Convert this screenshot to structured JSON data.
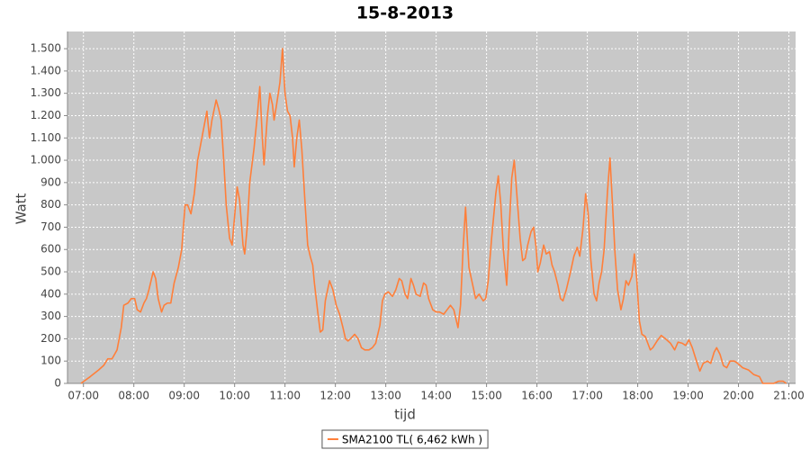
{
  "chart_data": {
    "type": "line",
    "title": "15-8-2013",
    "x_label": "tijd",
    "y_label": "Watt",
    "x": [
      "06:57",
      "07:08",
      "07:18",
      "07:24",
      "07:29",
      "07:34",
      "07:40",
      "07:45",
      "07:48",
      "07:53",
      "07:57",
      "08:01",
      "08:04",
      "08:08",
      "08:12",
      "08:15",
      "08:18",
      "08:23",
      "08:26",
      "08:29",
      "08:33",
      "08:36",
      "08:40",
      "08:44",
      "08:48",
      "08:53",
      "08:57",
      "09:01",
      "09:04",
      "09:08",
      "09:12",
      "09:16",
      "09:20",
      "09:25",
      "09:27",
      "09:30",
      "09:33",
      "09:38",
      "09:41",
      "09:44",
      "09:47",
      "09:50",
      "09:54",
      "09:57",
      "10:00",
      "10:03",
      "10:06",
      "10:10",
      "10:12",
      "10:15",
      "10:18",
      "10:23",
      "10:27",
      "10:30",
      "10:33",
      "10:35",
      "10:39",
      "10:42",
      "10:45",
      "10:47",
      "10:50",
      "10:54",
      "10:57",
      "11:00",
      "11:03",
      "11:06",
      "11:09",
      "11:11",
      "11:14",
      "11:17",
      "11:20",
      "11:24",
      "11:27",
      "11:30",
      "11:33",
      "11:35",
      "11:39",
      "11:42",
      "11:45",
      "11:48",
      "11:53",
      "11:57",
      "12:01",
      "12:05",
      "12:09",
      "12:12",
      "12:15",
      "12:18",
      "12:23",
      "12:27",
      "12:31",
      "12:35",
      "12:40",
      "12:44",
      "12:48",
      "12:53",
      "12:56",
      "12:59",
      "13:03",
      "13:08",
      "13:12",
      "13:16",
      "13:19",
      "13:23",
      "13:26",
      "13:30",
      "13:33",
      "13:36",
      "13:41",
      "13:45",
      "13:48",
      "13:51",
      "13:56",
      "14:00",
      "14:04",
      "14:09",
      "14:13",
      "14:17",
      "14:21",
      "14:26",
      "14:29",
      "14:32",
      "14:35",
      "14:39",
      "14:43",
      "14:47",
      "14:51",
      "14:56",
      "14:59",
      "15:02",
      "15:06",
      "15:11",
      "15:14",
      "15:17",
      "15:20",
      "15:24",
      "15:27",
      "15:30",
      "15:33",
      "15:36",
      "15:40",
      "15:43",
      "15:46",
      "15:49",
      "15:53",
      "15:56",
      "15:59",
      "16:01",
      "16:04",
      "16:08",
      "16:11",
      "16:15",
      "16:18",
      "16:21",
      "16:25",
      "16:28",
      "16:31",
      "16:35",
      "16:40",
      "16:44",
      "16:48",
      "16:51",
      "16:55",
      "16:58",
      "17:01",
      "17:04",
      "17:08",
      "17:11",
      "17:14",
      "17:17",
      "17:20",
      "17:24",
      "17:27",
      "17:30",
      "17:33",
      "17:36",
      "17:40",
      "17:43",
      "17:46",
      "17:49",
      "17:53",
      "17:56",
      "17:59",
      "18:02",
      "18:05",
      "18:09",
      "18:12",
      "18:15",
      "18:18",
      "18:23",
      "18:28",
      "18:33",
      "18:39",
      "18:44",
      "18:48",
      "18:53",
      "18:57",
      "19:01",
      "19:05",
      "19:10",
      "19:14",
      "19:18",
      "19:23",
      "19:27",
      "19:31",
      "19:34",
      "19:38",
      "19:42",
      "19:46",
      "19:50",
      "19:55",
      "19:59",
      "20:05",
      "20:12",
      "20:18",
      "20:25",
      "20:29",
      "20:42",
      "20:48",
      "20:53",
      "20:57"
    ],
    "series": [
      {
        "name": "SMA2100 TL( 6,462 kWh )",
        "color": "#ff7f3a",
        "values": [
          0,
          30,
          60,
          80,
          110,
          110,
          150,
          250,
          350,
          360,
          380,
          380,
          330,
          320,
          360,
          380,
          420,
          500,
          470,
          380,
          320,
          350,
          360,
          360,
          450,
          520,
          600,
          800,
          800,
          760,
          850,
          1000,
          1080,
          1180,
          1220,
          1100,
          1180,
          1270,
          1230,
          1180,
          1000,
          800,
          650,
          620,
          750,
          880,
          820,
          620,
          580,
          700,
          900,
          1050,
          1200,
          1330,
          1100,
          980,
          1200,
          1300,
          1250,
          1180,
          1250,
          1350,
          1500,
          1300,
          1220,
          1200,
          1100,
          970,
          1100,
          1180,
          1050,
          800,
          620,
          570,
          530,
          450,
          320,
          230,
          240,
          370,
          460,
          420,
          350,
          310,
          250,
          200,
          190,
          200,
          220,
          200,
          160,
          150,
          150,
          160,
          180,
          260,
          370,
          400,
          410,
          390,
          420,
          470,
          460,
          400,
          380,
          470,
          440,
          400,
          390,
          450,
          440,
          380,
          330,
          320,
          320,
          310,
          330,
          350,
          330,
          250,
          350,
          600,
          790,
          520,
          450,
          380,
          400,
          370,
          380,
          460,
          650,
          850,
          930,
          800,
          600,
          440,
          700,
          920,
          1000,
          850,
          650,
          550,
          560,
          620,
          680,
          700,
          610,
          500,
          540,
          620,
          580,
          590,
          530,
          500,
          440,
          380,
          370,
          420,
          500,
          570,
          610,
          570,
          700,
          850,
          760,
          560,
          400,
          370,
          450,
          500,
          600,
          860,
          1010,
          800,
          580,
          420,
          330,
          380,
          460,
          440,
          480,
          580,
          460,
          280,
          220,
          210,
          180,
          150,
          160,
          190,
          215,
          200,
          180,
          150,
          185,
          180,
          170,
          195,
          160,
          100,
          55,
          90,
          100,
          90,
          140,
          160,
          130,
          80,
          70,
          100,
          100,
          90,
          70,
          60,
          40,
          30,
          0,
          0,
          10,
          10,
          0
        ]
      }
    ],
    "xlim": [
      "06:41",
      "21:08"
    ],
    "xticks": [
      "07:00",
      "08:00",
      "09:00",
      "10:00",
      "11:00",
      "12:00",
      "13:00",
      "14:00",
      "15:00",
      "16:00",
      "17:00",
      "18:00",
      "19:00",
      "20:00",
      "21:00"
    ],
    "ylim": [
      0,
      1577
    ],
    "yticks": [
      0,
      100,
      200,
      300,
      400,
      500,
      600,
      700,
      800,
      900,
      {
        "value": 1000,
        "label": "1.000"
      },
      {
        "value": 1100,
        "label": "1.100"
      },
      {
        "value": 1200,
        "label": "1.200"
      },
      {
        "value": 1300,
        "label": "1.300"
      },
      {
        "value": 1400,
        "label": "1.400"
      },
      {
        "value": 1500,
        "label": "1.500"
      }
    ],
    "grid": true,
    "legend": "bottom"
  }
}
